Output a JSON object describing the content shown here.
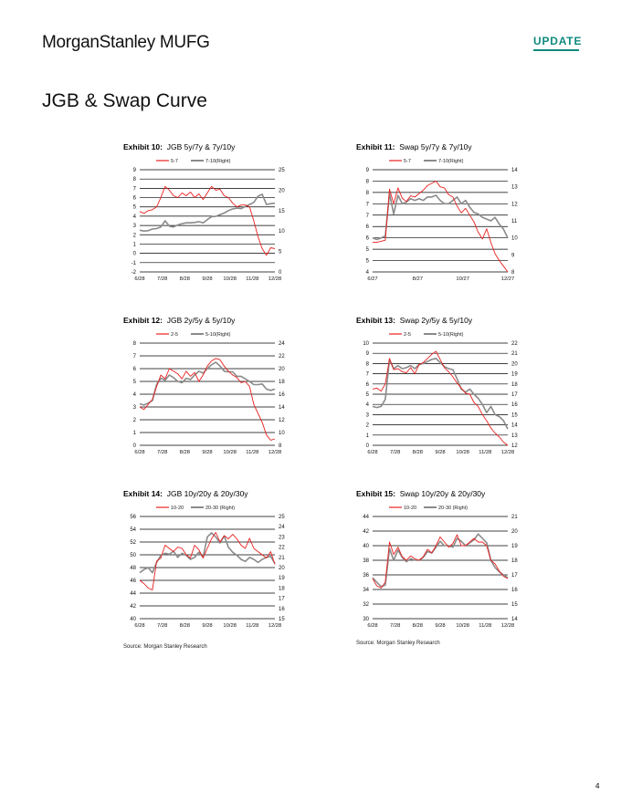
{
  "header": {
    "brand": "MorganStanley MUFG",
    "badge": "UPDATE"
  },
  "page": {
    "title": "JGB & Swap Curve",
    "number": "4"
  },
  "colors": {
    "s1": "#e8201f",
    "s2": "#8a8a8a",
    "accent": "#0f8a7f"
  },
  "sources": [
    {
      "text": "Source: Morgan Stanley Research"
    },
    {
      "text": "Source: Morgan Stanley Research"
    }
  ],
  "chart_data": [
    {
      "type": "line",
      "label": "Exhibit 10:",
      "title": "JGB 5y/7y & 7y/10y",
      "x_labels": [
        "6/28",
        "7/28",
        "8/28",
        "9/28",
        "10/28",
        "11/28",
        "12/28"
      ],
      "y_left": [
        -2,
        -1,
        0,
        1,
        2,
        3,
        4,
        5,
        6,
        7,
        8,
        9
      ],
      "y_right": [
        0,
        5,
        10,
        15,
        20,
        25
      ],
      "ylim_left": [
        -2,
        9
      ],
      "ylim_right": [
        0,
        25
      ],
      "series": [
        {
          "name": "5-7",
          "axis": "left",
          "values": [
            4.5,
            4.3,
            4.6,
            4.7,
            5.0,
            6.0,
            7.2,
            6.8,
            6.2,
            6.0,
            6.5,
            6.2,
            6.6,
            6.0,
            6.4,
            5.8,
            6.5,
            7.2,
            6.8,
            6.9,
            6.2,
            6.0,
            5.4,
            5.0,
            5.2,
            5.2,
            5.0,
            3.5,
            1.8,
            0.5,
            -0.2,
            0.6,
            0.5
          ]
        },
        {
          "name": "7-10(Right)",
          "axis": "right",
          "values": [
            10.2,
            10.0,
            10.1,
            10.5,
            10.6,
            11.0,
            12.5,
            11.2,
            11.0,
            11.5,
            11.8,
            12.0,
            12.0,
            12.1,
            12.3,
            12.0,
            12.8,
            13.5,
            13.6,
            14.0,
            14.4,
            15.0,
            15.4,
            15.6,
            15.5,
            16.0,
            16.5,
            17.0,
            18.5,
            19.0,
            16.5,
            16.7,
            16.8
          ]
        }
      ]
    },
    {
      "type": "line",
      "label": "Exhibit 11:",
      "title": "Swap 5y/7y & 7y/10y",
      "x_labels": [
        "6/27",
        "8/27",
        "10/27",
        "12/27"
      ],
      "y_left": [
        "4",
        "5",
        "5",
        "6",
        "6",
        "7",
        "7",
        "8",
        "8",
        "9"
      ],
      "y_right": [
        8,
        9,
        10,
        11,
        12,
        13,
        14
      ],
      "ylim_left": [
        0,
        9
      ],
      "ylim_right": [
        8,
        14
      ],
      "series": [
        {
          "name": "5-7",
          "axis": "left",
          "values": [
            2.6,
            2.6,
            2.7,
            2.8,
            7.3,
            6.0,
            7.4,
            6.5,
            6.2,
            6.7,
            6.6,
            6.9,
            7.2,
            7.6,
            7.8,
            8.0,
            7.5,
            7.4,
            6.8,
            6.6,
            5.8,
            5.2,
            5.6,
            5.0,
            4.4,
            3.5,
            2.9,
            3.8,
            2.6,
            1.6,
            1.0,
            0.5,
            0.0
          ]
        },
        {
          "name": "7-10(Right)",
          "axis": "right",
          "values": [
            10.0,
            9.9,
            10.0,
            10.1,
            12.6,
            11.4,
            12.5,
            12.0,
            12.1,
            12.3,
            12.2,
            12.3,
            12.2,
            12.4,
            12.4,
            12.5,
            12.2,
            12.0,
            12.0,
            12.2,
            12.4,
            12.0,
            12.2,
            11.8,
            11.5,
            11.4,
            11.2,
            11.1,
            11.0,
            11.2,
            10.8,
            10.5,
            10.0
          ]
        }
      ]
    },
    {
      "type": "line",
      "label": "Exhibit 12:",
      "title": "JGB 2y/5y & 5y/10y",
      "x_labels": [
        "6/28",
        "7/28",
        "8/28",
        "9/28",
        "10/28",
        "11/28",
        "12/28"
      ],
      "y_left": [
        0,
        1,
        2,
        3,
        4,
        5,
        6,
        7,
        8
      ],
      "y_right": [
        8,
        10,
        12,
        14,
        16,
        18,
        20,
        22,
        24
      ],
      "ylim_left": [
        0,
        8
      ],
      "ylim_right": [
        8,
        24
      ],
      "series": [
        {
          "name": "2-5",
          "axis": "left",
          "values": [
            3.0,
            2.8,
            3.2,
            3.6,
            4.6,
            5.5,
            5.2,
            6.0,
            5.8,
            5.6,
            5.2,
            5.8,
            5.4,
            5.7,
            5.0,
            5.5,
            6.2,
            6.6,
            6.8,
            6.7,
            6.2,
            5.8,
            5.5,
            5.3,
            4.9,
            5.0,
            4.6,
            3.2,
            2.5,
            1.8,
            0.8,
            0.4,
            0.5
          ]
        },
        {
          "name": "5-10(Right)",
          "axis": "right",
          "values": [
            14.5,
            14.3,
            14.6,
            15.0,
            17.5,
            18.5,
            18.2,
            19.0,
            18.6,
            18.0,
            17.8,
            18.5,
            18.3,
            19.0,
            19.6,
            19.3,
            20.0,
            20.6,
            21.0,
            20.4,
            19.6,
            19.5,
            19.5,
            18.8,
            18.8,
            18.4,
            18.0,
            17.5,
            17.5,
            17.6,
            16.8,
            16.6,
            16.8
          ]
        }
      ]
    },
    {
      "type": "line",
      "label": "Exhibit 13:",
      "title": "Swap 2y/5y & 5y/10y",
      "x_labels": [
        "6/28",
        "7/28",
        "8/28",
        "9/28",
        "10/28",
        "11/28",
        "12/28"
      ],
      "y_left": [
        0,
        1,
        2,
        3,
        4,
        5,
        6,
        7,
        8,
        9,
        10
      ],
      "y_right": [
        12,
        13,
        14,
        15,
        16,
        17,
        18,
        19,
        20,
        21,
        22
      ],
      "ylim_left": [
        0,
        10
      ],
      "ylim_right": [
        12,
        22
      ],
      "series": [
        {
          "name": "2-5",
          "axis": "left",
          "values": [
            5.5,
            5.6,
            5.3,
            6.0,
            8.5,
            7.4,
            7.5,
            7.2,
            7.1,
            7.6,
            7.0,
            7.9,
            8.1,
            8.5,
            8.9,
            9.2,
            8.4,
            7.6,
            7.2,
            6.7,
            6.1,
            5.6,
            5.1,
            5.0,
            4.2,
            3.8,
            3.0,
            2.4,
            1.7,
            1.2,
            0.8,
            0.3,
            0.0
          ]
        },
        {
          "name": "5-10(Right)",
          "axis": "right",
          "values": [
            15.8,
            15.7,
            15.8,
            16.5,
            20.4,
            19.5,
            19.8,
            19.5,
            19.6,
            19.8,
            19.5,
            19.9,
            20.0,
            20.2,
            20.4,
            20.5,
            20.1,
            19.7,
            19.5,
            19.4,
            18.5,
            17.5,
            17.2,
            17.5,
            17.0,
            16.6,
            16.0,
            15.2,
            15.8,
            15.0,
            14.8,
            14.4,
            13.6
          ]
        }
      ]
    },
    {
      "type": "line",
      "label": "Exhibit 14:",
      "title": "JGB 10y/20y & 20y/30y",
      "x_labels": [
        "6/28",
        "7/28",
        "8/28",
        "9/28",
        "10/28",
        "11/28",
        "12/28"
      ],
      "y_left": [
        40,
        42,
        44,
        46,
        48,
        50,
        52,
        54,
        56
      ],
      "y_right": [
        15,
        16,
        17,
        18,
        19,
        20,
        21,
        22,
        23,
        24,
        25
      ],
      "ylim_left": [
        40,
        56
      ],
      "ylim_right": [
        15,
        25
      ],
      "series": [
        {
          "name": "10-20",
          "axis": "left",
          "values": [
            46.0,
            45.5,
            44.8,
            44.5,
            49.0,
            49.5,
            51.5,
            51.0,
            50.5,
            51.2,
            51.0,
            50.0,
            49.5,
            51.5,
            50.8,
            49.5,
            51.0,
            52.5,
            53.5,
            52.0,
            53.0,
            52.5,
            53.2,
            52.5,
            51.5,
            51.0,
            52.6,
            51.0,
            50.5,
            50.0,
            49.5,
            50.5,
            48.5
          ]
        },
        {
          "name": "20-30 (Right)",
          "axis": "right",
          "values": [
            19.5,
            19.8,
            20.0,
            19.5,
            20.5,
            21.2,
            21.4,
            21.3,
            21.6,
            21.0,
            21.4,
            21.2,
            20.8,
            21.0,
            21.5,
            21.0,
            23.0,
            23.4,
            23.0,
            22.4,
            23.1,
            22.0,
            21.5,
            21.2,
            20.8,
            20.6,
            21.0,
            20.8,
            20.5,
            20.8,
            21.0,
            21.1,
            20.4
          ]
        }
      ]
    },
    {
      "type": "line",
      "label": "Exhibit 15:",
      "title": "Swap 10y/20y & 20y/30y",
      "x_labels": [
        "6/28",
        "7/28",
        "8/28",
        "9/28",
        "10/28",
        "11/28",
        "12/28"
      ],
      "y_left": [
        30,
        32,
        34,
        36,
        38,
        40,
        42,
        44
      ],
      "y_right": [
        14,
        15,
        16,
        17,
        18,
        19,
        20,
        21
      ],
      "ylim_left": [
        30,
        44
      ],
      "ylim_right": [
        14,
        21
      ],
      "series": [
        {
          "name": "10-20",
          "axis": "left",
          "values": [
            35.5,
            34.5,
            34.2,
            35.0,
            40.5,
            38.8,
            39.8,
            38.5,
            38.0,
            38.6,
            38.2,
            38.0,
            38.5,
            39.5,
            39.0,
            40.0,
            41.2,
            40.5,
            39.8,
            40.3,
            41.5,
            40.0,
            40.0,
            40.5,
            41.0,
            40.5,
            40.5,
            40.0,
            38.0,
            37.5,
            36.5,
            35.8,
            35.5
          ]
        },
        {
          "name": "20-30 (Right)",
          "axis": "right",
          "values": [
            16.8,
            16.5,
            16.2,
            16.3,
            18.8,
            18.0,
            18.7,
            18.2,
            17.9,
            18.1,
            18.0,
            18.0,
            18.2,
            18.6,
            18.5,
            18.9,
            19.3,
            19.0,
            19.0,
            18.9,
            19.5,
            19.3,
            19.0,
            19.2,
            19.4,
            19.8,
            19.5,
            19.2,
            18.0,
            17.5,
            17.2,
            17.0,
            16.8
          ]
        }
      ]
    }
  ]
}
